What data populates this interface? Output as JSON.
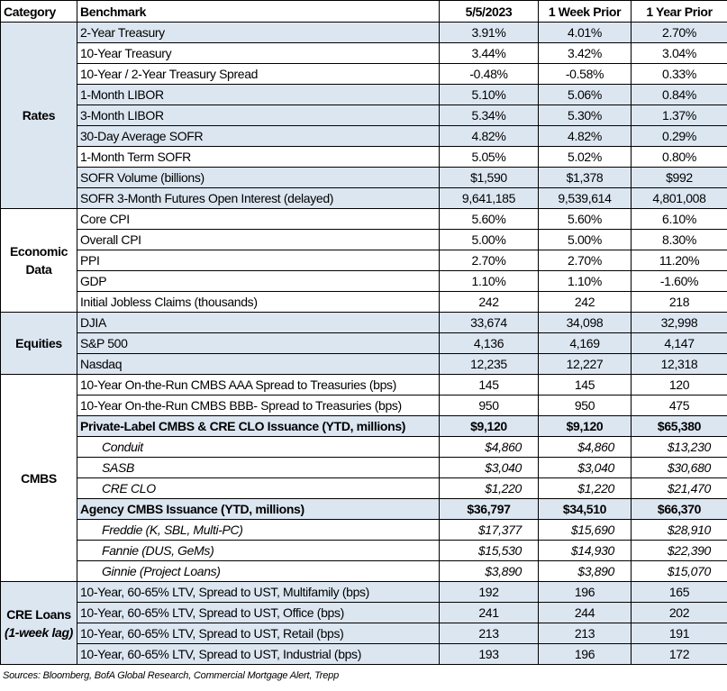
{
  "header": [
    "Category",
    "Benchmark",
    "5/5/2023",
    "1 Week Prior",
    "1 Year Prior"
  ],
  "groups": [
    {
      "category": "Rates",
      "shaded": true,
      "rows": [
        {
          "benchmark": "2-Year Treasury",
          "values": [
            "3.91%",
            "4.01%",
            "2.70%"
          ],
          "shaded": true
        },
        {
          "benchmark": "10-Year Treasury",
          "values": [
            "3.44%",
            "3.42%",
            "3.04%"
          ]
        },
        {
          "benchmark": "10-Year / 2-Year Treasury Spread",
          "values": [
            "-0.48%",
            "-0.58%",
            "0.33%"
          ]
        },
        {
          "benchmark": "1-Month LIBOR",
          "values": [
            "5.10%",
            "5.06%",
            "0.84%"
          ],
          "shaded": true
        },
        {
          "benchmark": "3-Month LIBOR",
          "values": [
            "5.34%",
            "5.30%",
            "1.37%"
          ],
          "shaded": true
        },
        {
          "benchmark": "30-Day Average SOFR",
          "values": [
            "4.82%",
            "4.82%",
            "0.29%"
          ],
          "shaded": true
        },
        {
          "benchmark": "1-Month Term SOFR",
          "values": [
            "5.05%",
            "5.02%",
            "0.80%"
          ]
        },
        {
          "benchmark": "SOFR Volume (billions)",
          "values": [
            "$1,590",
            "$1,378",
            "$992"
          ],
          "shaded": true
        },
        {
          "benchmark": "SOFR 3-Month Futures Open Interest (delayed)",
          "values": [
            "9,641,185",
            "9,539,614",
            "4,801,008"
          ],
          "shaded": true
        }
      ]
    },
    {
      "category": "Economic Data",
      "rows": [
        {
          "benchmark": "Core CPI",
          "values": [
            "5.60%",
            "5.60%",
            "6.10%"
          ]
        },
        {
          "benchmark": "Overall CPI",
          "values": [
            "5.00%",
            "5.00%",
            "8.30%"
          ]
        },
        {
          "benchmark": "PPI",
          "values": [
            "2.70%",
            "2.70%",
            "11.20%"
          ]
        },
        {
          "benchmark": "GDP",
          "values": [
            "1.10%",
            "1.10%",
            "-1.60%"
          ]
        },
        {
          "benchmark": "Initial Jobless Claims (thousands)",
          "values": [
            "242",
            "242",
            "218"
          ]
        }
      ]
    },
    {
      "category": "Equities",
      "shaded": true,
      "rows": [
        {
          "benchmark": "DJIA",
          "values": [
            "33,674",
            "34,098",
            "32,998"
          ],
          "shaded": true
        },
        {
          "benchmark": "S&P 500",
          "values": [
            "4,136",
            "4,169",
            "4,147"
          ],
          "shaded": true
        },
        {
          "benchmark": "Nasdaq",
          "values": [
            "12,235",
            "12,227",
            "12,318"
          ],
          "shaded": true
        }
      ]
    },
    {
      "category": "CMBS",
      "rows": [
        {
          "benchmark": "10-Year On-the-Run CMBS AAA Spread to Treasuries (bps)",
          "values": [
            "145",
            "145",
            "120"
          ]
        },
        {
          "benchmark": "10-Year On-the-Run CMBS BBB- Spread to Treasuries (bps)",
          "values": [
            "950",
            "950",
            "475"
          ]
        },
        {
          "benchmark": "Private-Label CMBS & CRE CLO Issuance (YTD, millions)",
          "values": [
            "$9,120",
            "$9,120",
            "$65,380"
          ],
          "style": "bold",
          "shaded": true
        },
        {
          "benchmark": "Conduit",
          "values": [
            "$4,860",
            "$4,860",
            "$13,230"
          ],
          "style": "italic"
        },
        {
          "benchmark": "SASB",
          "values": [
            "$3,040",
            "$3,040",
            "$30,680"
          ],
          "style": "italic"
        },
        {
          "benchmark": "CRE CLO",
          "values": [
            "$1,220",
            "$1,220",
            "$21,470"
          ],
          "style": "italic"
        },
        {
          "benchmark": "Agency CMBS Issuance (YTD, millions)",
          "values": [
            "$36,797",
            "$34,510",
            "$66,370"
          ],
          "style": "bold",
          "shaded": true
        },
        {
          "benchmark": "Freddie (K, SBL, Multi-PC)",
          "values": [
            "$17,377",
            "$15,690",
            "$28,910"
          ],
          "style": "italic"
        },
        {
          "benchmark": "Fannie (DUS, GeMs)",
          "values": [
            "$15,530",
            "$14,930",
            "$22,390"
          ],
          "style": "italic"
        },
        {
          "benchmark": "Ginnie (Project Loans)",
          "values": [
            "$3,890",
            "$3,890",
            "$15,070"
          ],
          "style": "italic"
        }
      ]
    },
    {
      "category": "CRE Loans",
      "category_note": "(1-week lag)",
      "shaded": true,
      "rows": [
        {
          "benchmark": "10-Year, 60-65% LTV, Spread to UST, Multifamily (bps)",
          "values": [
            "192",
            "196",
            "165"
          ],
          "shaded": true
        },
        {
          "benchmark": "10-Year, 60-65% LTV, Spread to UST, Office (bps)",
          "values": [
            "241",
            "244",
            "202"
          ],
          "shaded": true
        },
        {
          "benchmark": "10-Year, 60-65% LTV, Spread to UST, Retail (bps)",
          "values": [
            "213",
            "213",
            "191"
          ],
          "shaded": true
        },
        {
          "benchmark": "10-Year, 60-65% LTV, Spread to UST, Industrial (bps)",
          "values": [
            "193",
            "196",
            "172"
          ],
          "shaded": true
        }
      ]
    }
  ],
  "footer": "Sources: Bloomberg, BofA Global Research, Commercial Mortgage Alert, Trepp"
}
